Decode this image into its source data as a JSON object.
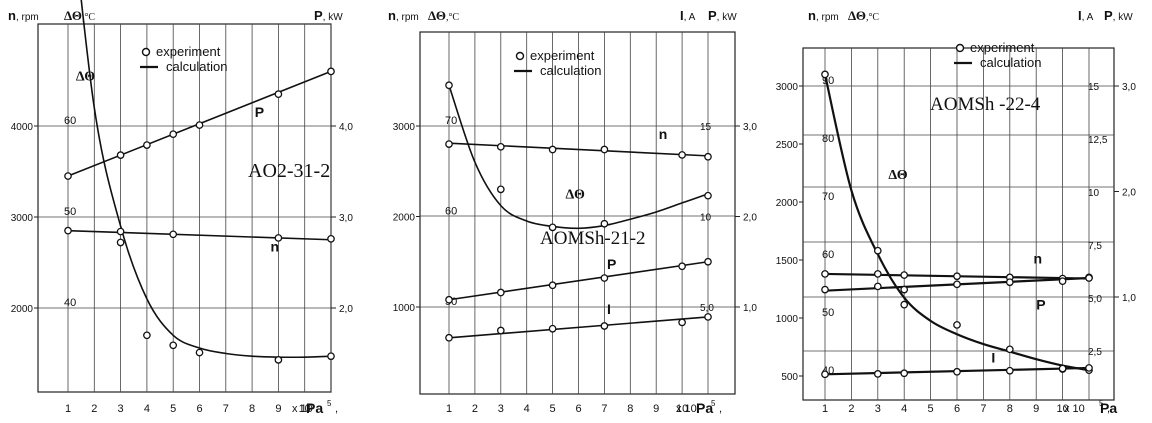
{
  "chart_data": [
    {
      "type": "line",
      "title": "AO2-31-2",
      "n_axis": {
        "name": "n",
        "unit": "rpm",
        "ticks": [
          2000,
          3000,
          4000
        ]
      },
      "dt_axis": {
        "name": "ΔΘ",
        "unit": "°C",
        "ticks": [
          40,
          50,
          60
        ]
      },
      "p_axis": {
        "name": "P",
        "unit": "kW",
        "ticks": [
          "2,0",
          "3,0",
          "4,0"
        ]
      },
      "x_ticks": [
        "1",
        "2",
        "3",
        "4",
        "5",
        "6",
        "7",
        "8",
        "9",
        "10"
      ],
      "x_suffix": "x 10",
      "x_exp": "5",
      "x_unit": "Pa",
      "legend": {
        "experiment": "experiment",
        "calculation": "calculation"
      },
      "series": [
        {
          "name": "ΔΘ",
          "label": "ΔΘ",
          "label_anchor": [
            1.3,
            65
          ],
          "axis": "dt",
          "x": [
            1,
            3,
            4,
            5,
            6,
            9,
            11
          ],
          "values": [
            87.4,
            48.4,
            37,
            35.9,
            35.1,
            34.3,
            34.7
          ]
        },
        {
          "name": "P",
          "label": "P",
          "label_anchor": [
            8.1,
            4.1
          ],
          "axis": "p",
          "x": [
            1,
            3,
            4,
            5,
            6,
            9,
            11
          ],
          "values": [
            3.45,
            3.68,
            3.79,
            3.91,
            4.01,
            4.35,
            4.6
          ]
        },
        {
          "name": "n",
          "label": "n",
          "label_anchor": [
            8.7,
            2620
          ],
          "axis": "n",
          "x": [
            1,
            3,
            5,
            9,
            11
          ],
          "values": [
            2850,
            2720,
            2810,
            2770,
            2760
          ]
        }
      ],
      "curves": [
        {
          "name": "ΔΘ",
          "axis": "dt",
          "x": [
            1,
            2,
            3,
            4,
            5,
            6,
            7,
            8,
            9,
            10,
            11
          ],
          "values": [
            87.5,
            62,
            49,
            41,
            37,
            35.6,
            35,
            34.7,
            34.6,
            34.6,
            34.7
          ]
        },
        {
          "name": "P",
          "axis": "p",
          "x": [
            1,
            11
          ],
          "values": [
            3.45,
            4.6
          ]
        },
        {
          "name": "n",
          "axis": "n",
          "x": [
            1,
            11
          ],
          "values": [
            2850,
            2750
          ]
        }
      ]
    },
    {
      "type": "line",
      "title": "AOMSh-21-2",
      "n_axis": {
        "name": "n",
        "unit": "rpm",
        "ticks": [
          1000,
          2000,
          3000
        ]
      },
      "dt_axis": {
        "name": "ΔΘ",
        "unit": "°C",
        "ticks": [
          50,
          60,
          70
        ]
      },
      "i_axis": {
        "name": "I",
        "unit": "A",
        "ticks": [
          "5,0",
          "10",
          "15"
        ]
      },
      "p_axis": {
        "name": "P",
        "unit": "kW",
        "ticks": [
          "1,0",
          "2,0",
          "3,0"
        ]
      },
      "x_ticks": [
        "1",
        "2",
        "3",
        "4",
        "5",
        "6",
        "7",
        "8",
        "9",
        "10"
      ],
      "x_suffix": "x 10",
      "x_exp": "5",
      "x_unit": "Pa",
      "legend": {
        "experiment": "experiment",
        "calculation": "calculation"
      },
      "series": [
        {
          "name": "ΔΘ",
          "label": "ΔΘ",
          "label_anchor": [
            5.5,
            62
          ],
          "axis": "dt",
          "x": [
            1,
            3,
            5,
            7,
            11
          ],
          "values": [
            74.5,
            63,
            58.8,
            59.2,
            62.3
          ]
        },
        {
          "name": "n",
          "label": "n",
          "label_anchor": [
            9.1,
            2855
          ],
          "axis": "n",
          "x": [
            1,
            3,
            5,
            7,
            10,
            11
          ],
          "values": [
            2800,
            2770,
            2740,
            2740,
            2680,
            2660
          ]
        },
        {
          "name": "P",
          "label": "P",
          "label_anchor": [
            7.1,
            1.42
          ],
          "axis": "p",
          "x": [
            1,
            3,
            5,
            7,
            10,
            11
          ],
          "values": [
            1.08,
            1.16,
            1.24,
            1.32,
            1.45,
            1.5
          ]
        },
        {
          "name": "I",
          "label": "I",
          "label_anchor": [
            7.1,
            4.6
          ],
          "axis": "i",
          "x": [
            1,
            3,
            5,
            7,
            10,
            11
          ],
          "values": [
            3.3,
            3.7,
            3.8,
            3.95,
            4.15,
            4.45
          ]
        }
      ],
      "curves": [
        {
          "name": "ΔΘ",
          "axis": "dt",
          "x": [
            1,
            2,
            3,
            4,
            5,
            6,
            7,
            8,
            9,
            10,
            11
          ],
          "values": [
            74.5,
            66,
            61.2,
            59.5,
            58.9,
            58.7,
            59,
            59.7,
            60.5,
            61.5,
            62.5
          ]
        },
        {
          "name": "n",
          "axis": "n",
          "x": [
            1,
            11
          ],
          "values": [
            2810,
            2670
          ]
        },
        {
          "name": "P",
          "axis": "p",
          "x": [
            1,
            11
          ],
          "values": [
            1.08,
            1.5
          ]
        },
        {
          "name": "I",
          "axis": "i",
          "x": [
            1,
            11
          ],
          "values": [
            3.3,
            4.45
          ]
        }
      ]
    },
    {
      "type": "line",
      "title": "AOMSh -22-4",
      "n_axis": {
        "name": "n",
        "unit": "rpm",
        "ticks": [
          500,
          1000,
          1500,
          2000,
          2500,
          3000
        ]
      },
      "dt_axis": {
        "name": "ΔΘ",
        "unit": "°C",
        "ticks": [
          40,
          50,
          60,
          70,
          80,
          90
        ]
      },
      "i_axis": {
        "name": "I",
        "unit": "A",
        "ticks": [
          "2,5",
          "5,0",
          "7,5",
          "10",
          "12,5",
          "15"
        ]
      },
      "p_axis": {
        "name": "P",
        "unit": "kW",
        "ticks": [
          "1,0",
          "2,0",
          "3,0"
        ]
      },
      "x_ticks": [
        "1",
        "2",
        "3",
        "4",
        "5",
        "6",
        "7",
        "8",
        "9",
        "10"
      ],
      "x_suffix": "x 10",
      "x_exp": "5",
      "x_unit": "Pa",
      "legend": {
        "experiment": "experiment",
        "calculation": "calculation"
      },
      "series": [
        {
          "name": "ΔΘ",
          "label": "ΔΘ",
          "label_anchor": [
            3.4,
            74
          ],
          "axis": "dt",
          "x": [
            1,
            3,
            4,
            6,
            8,
            10,
            11
          ],
          "values": [
            92,
            61.6,
            52.3,
            48.8,
            44.6,
            41.2,
            41
          ]
        },
        {
          "name": "n",
          "label": "n",
          "label_anchor": [
            8.9,
            1470
          ],
          "axis": "n",
          "x": [
            1,
            3,
            4,
            6,
            8,
            10,
            11
          ],
          "values": [
            1380,
            1380,
            1370,
            1360,
            1350,
            1340,
            1350
          ]
        },
        {
          "name": "P",
          "label": "P",
          "label_anchor": [
            9,
            0.88
          ],
          "axis": "p",
          "x": [
            1,
            3,
            4,
            6,
            8,
            10,
            11
          ],
          "values": [
            1.07,
            1.1,
            1.07,
            1.12,
            1.14,
            1.15,
            1.18
          ]
        },
        {
          "name": "I",
          "label": "I",
          "label_anchor": [
            7.3,
            1.95
          ],
          "axis": "i",
          "x": [
            1,
            3,
            4,
            6,
            8,
            10,
            11
          ],
          "values": [
            1.4,
            1.42,
            1.45,
            1.52,
            1.57,
            1.67,
            1.7
          ]
        }
      ],
      "curves": [
        {
          "name": "ΔΘ",
          "axis": "dt",
          "x": [
            1,
            2,
            3,
            4,
            5,
            6,
            7,
            8,
            9,
            10,
            11
          ],
          "values": [
            92,
            72,
            61,
            53.5,
            49.5,
            47.2,
            45.5,
            44.2,
            42.9,
            41.8,
            41
          ]
        },
        {
          "name": "n",
          "axis": "n",
          "x": [
            1,
            11
          ],
          "values": [
            1380,
            1340
          ]
        },
        {
          "name": "P",
          "axis": "p",
          "x": [
            1,
            11
          ],
          "values": [
            1.06,
            1.18
          ]
        },
        {
          "name": "I",
          "axis": "i",
          "x": [
            1,
            11
          ],
          "values": [
            1.4,
            1.7
          ]
        }
      ]
    }
  ]
}
